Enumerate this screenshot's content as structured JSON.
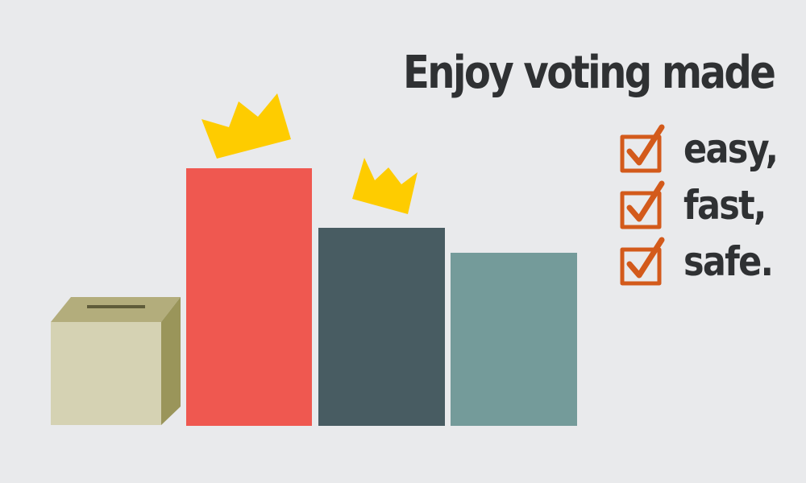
{
  "headline": "Enjoy voting made",
  "checklist": [
    {
      "label": "easy,",
      "checked": true,
      "icon": "checkbox-checked-icon"
    },
    {
      "label": "fast,",
      "checked": true,
      "icon": "checkbox-checked-icon"
    },
    {
      "label": "safe.",
      "checked": true,
      "icon": "checkbox-checked-icon"
    }
  ],
  "colors": {
    "background": "#e9eaec",
    "text": "#2f3133",
    "bar_red": "#ef5850",
    "bar_dark_slate": "#485c62",
    "bar_teal": "#749b9a",
    "ballot_box_front": "#d5d2b3",
    "ballot_box_side": "#9a955a",
    "ballot_box_top": "#b3ad7c",
    "crown": "#fecc00",
    "checkmark": "#d35a1b"
  },
  "icons": [
    "ballot-box-icon",
    "crown-icon",
    "checkbox-checked-icon"
  ]
}
